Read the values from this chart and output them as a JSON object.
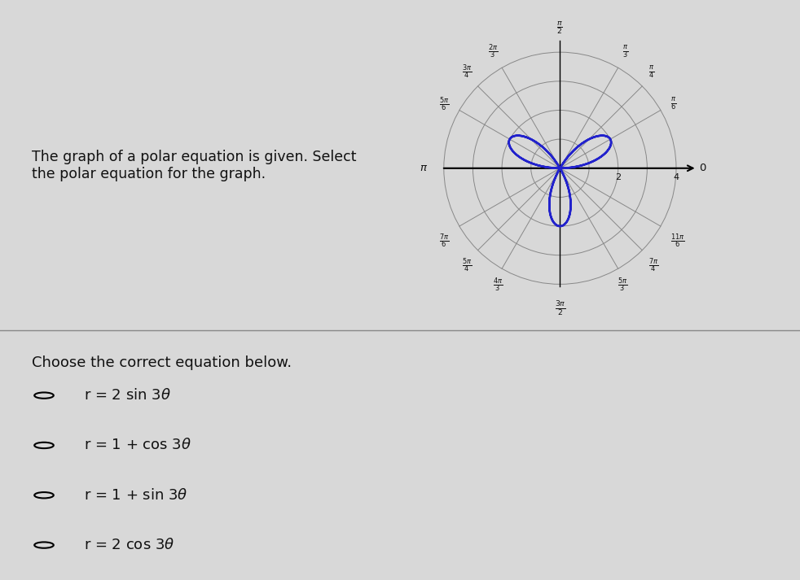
{
  "amplitude": 2,
  "n": 3,
  "r_max": 4,
  "circle_radii": [
    1,
    2,
    3,
    4
  ],
  "curve_color": "#2222cc",
  "curve_linewidth": 1.8,
  "grid_color": "#888888",
  "grid_linewidth": 0.7,
  "bg_color": "#d8d8d8",
  "top_bg": "#d8d8d8",
  "bottom_bg": "#e0e0e0",
  "question_text": "The graph of a polar equation is given. Select\nthe polar equation for the graph.",
  "choose_text": "Choose the correct equation below.",
  "r_tick_labels": [
    2,
    4
  ],
  "text_color": "#111111",
  "font_size_question": 12.5,
  "font_size_option": 13,
  "font_size_axis_label": 8.5,
  "font_size_r_label": 8
}
